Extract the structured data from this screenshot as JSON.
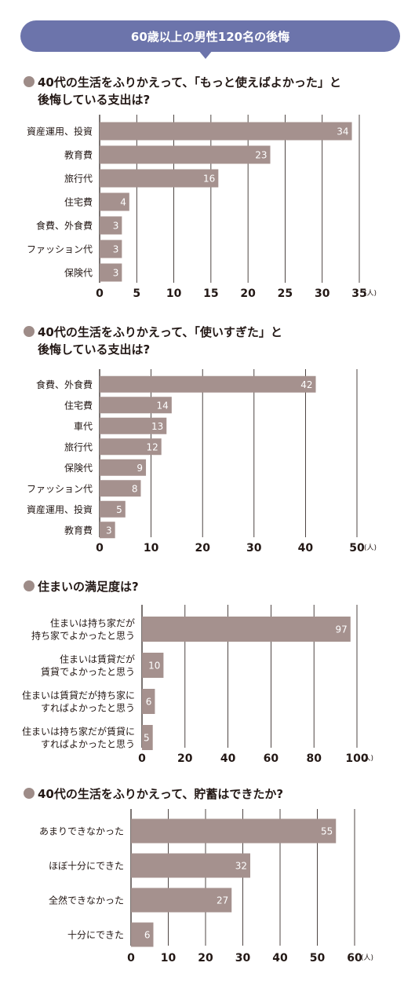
{
  "banner": {
    "title": "60歳以上の男性120名の後悔"
  },
  "colors": {
    "bar": "#a5918e",
    "accent": "#6c74ab",
    "bullet": "#9e8c88"
  },
  "unit_label": "(人)",
  "chart_data": [
    {
      "type": "bar",
      "orientation": "horizontal",
      "title_line1": "40代の生活をふりかえって、「もっと使えばよかった」と",
      "title_line2": "後悔している支出は?",
      "categories": [
        "資産運用、投資",
        "教育費",
        "旅行代",
        "住宅費",
        "食費、外食費",
        "ファッション代",
        "保険代"
      ],
      "values": [
        34,
        23,
        16,
        4,
        3,
        3,
        3
      ],
      "xticks": [
        0,
        5,
        10,
        15,
        20,
        25,
        30,
        35
      ],
      "xlim": [
        0,
        35
      ],
      "xlabel": "(人)",
      "grid": true
    },
    {
      "type": "bar",
      "orientation": "horizontal",
      "title_line1": "40代の生活をふりかえって、「使いすぎた」と",
      "title_line2": "後悔している支出は?",
      "categories": [
        "食費、外食費",
        "住宅費",
        "車代",
        "旅行代",
        "保険代",
        "ファッション代",
        "資産運用、投資",
        "教育費"
      ],
      "values": [
        42,
        14,
        13,
        12,
        9,
        8,
        5,
        3
      ],
      "xticks": [
        0,
        10,
        20,
        30,
        40,
        50
      ],
      "xlim": [
        0,
        50
      ],
      "xlabel": "(人)",
      "grid": true
    },
    {
      "type": "bar",
      "orientation": "horizontal",
      "title_line1": "住まいの満足度は?",
      "title_line2": "",
      "categories": [
        [
          "住まいは持ち家だが",
          "持ち家でよかったと思う"
        ],
        [
          "住まいは賃貸だが",
          "賃貸でよかったと思う"
        ],
        [
          "住まいは賃貸だが持ち家に",
          "すればよかったと思う"
        ],
        [
          "住まいは持ち家だが賃貸に",
          "すればよかったと思う"
        ]
      ],
      "values": [
        97,
        10,
        6,
        5
      ],
      "xticks": [
        0,
        20,
        40,
        60,
        80,
        100
      ],
      "xlim": [
        0,
        100
      ],
      "xlabel": "(人)",
      "grid": true
    },
    {
      "type": "bar",
      "orientation": "horizontal",
      "title_line1": "40代の生活をふりかえって、貯蓄はできたか?",
      "title_line2": "",
      "categories": [
        "あまりできなかった",
        "ほぼ十分にできた",
        "全然できなかった",
        "十分にできた"
      ],
      "values": [
        55,
        32,
        27,
        6
      ],
      "xticks": [
        0,
        10,
        20,
        30,
        40,
        50,
        60
      ],
      "xlim": [
        0,
        60
      ],
      "xlabel": "(人)",
      "grid": true
    }
  ]
}
